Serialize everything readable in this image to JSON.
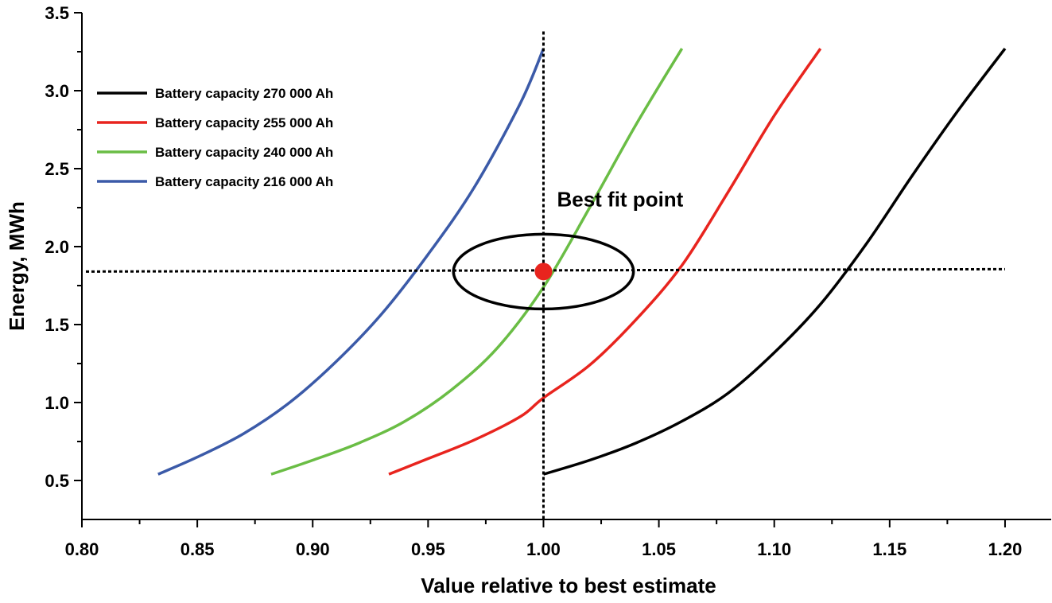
{
  "chart_data": {
    "type": "line",
    "title": "",
    "xlabel": "Value relative to best estimate",
    "ylabel": "Energy, MWh",
    "xlim": [
      0.8,
      1.22
    ],
    "ylim": [
      0.25,
      3.5
    ],
    "xticks": [
      "0.80",
      "0.85",
      "0.90",
      "0.95",
      "1.00",
      "1.05",
      "1.10",
      "1.15",
      "1.20"
    ],
    "yticks": [
      "0.5",
      "1.0",
      "1.5",
      "2.0",
      "2.5",
      "3.0",
      "3.5"
    ],
    "legend_position": "top-left",
    "grid": false,
    "series": [
      {
        "name": "Battery capacity  270 000 Ah",
        "color": "#000000",
        "points": [
          [
            1.0,
            0.54
          ],
          [
            1.02,
            0.63
          ],
          [
            1.04,
            0.74
          ],
          [
            1.06,
            0.88
          ],
          [
            1.08,
            1.06
          ],
          [
            1.1,
            1.32
          ],
          [
            1.12,
            1.63
          ],
          [
            1.14,
            2.02
          ],
          [
            1.16,
            2.46
          ],
          [
            1.18,
            2.88
          ],
          [
            1.2,
            3.27
          ]
        ]
      },
      {
        "name": "Battery capacity  255 000 Ah",
        "color": "#e8241e",
        "points": [
          [
            0.933,
            0.54
          ],
          [
            0.95,
            0.64
          ],
          [
            0.97,
            0.76
          ],
          [
            0.99,
            0.91
          ],
          [
            1.0,
            1.03
          ],
          [
            1.02,
            1.24
          ],
          [
            1.04,
            1.53
          ],
          [
            1.06,
            1.88
          ],
          [
            1.08,
            2.35
          ],
          [
            1.1,
            2.84
          ],
          [
            1.12,
            3.27
          ]
        ]
      },
      {
        "name": "Battery capacity  240 000 Ah",
        "color": "#6abd45",
        "points": [
          [
            0.882,
            0.54
          ],
          [
            0.9,
            0.63
          ],
          [
            0.92,
            0.74
          ],
          [
            0.94,
            0.88
          ],
          [
            0.96,
            1.08
          ],
          [
            0.98,
            1.35
          ],
          [
            1.0,
            1.74
          ],
          [
            1.02,
            2.25
          ],
          [
            1.04,
            2.78
          ],
          [
            1.06,
            3.27
          ]
        ]
      },
      {
        "name": "Battery capacity  216 000 Ah",
        "color": "#3b5aa8",
        "points": [
          [
            0.833,
            0.54
          ],
          [
            0.85,
            0.65
          ],
          [
            0.87,
            0.8
          ],
          [
            0.89,
            1.0
          ],
          [
            0.91,
            1.26
          ],
          [
            0.93,
            1.57
          ],
          [
            0.95,
            1.95
          ],
          [
            0.97,
            2.38
          ],
          [
            0.99,
            2.92
          ],
          [
            1.0,
            3.27
          ]
        ]
      }
    ],
    "annotations": {
      "label": "Best fit point",
      "best_fit_point": [
        1.0,
        1.84
      ],
      "best_fit_point_color": "#e8241e",
      "horizontal_dotted_line_y": 1.84,
      "horizontal_dotted_line_x_range": [
        0.8,
        1.2
      ],
      "vertical_dotted_line_x": 1.0,
      "vertical_dotted_line_y_range": [
        0.25,
        3.38
      ],
      "ellipse_center": [
        1.0,
        1.84
      ],
      "ellipse_x_halfwidth": 0.039,
      "ellipse_y_halfheight": 0.24
    }
  }
}
